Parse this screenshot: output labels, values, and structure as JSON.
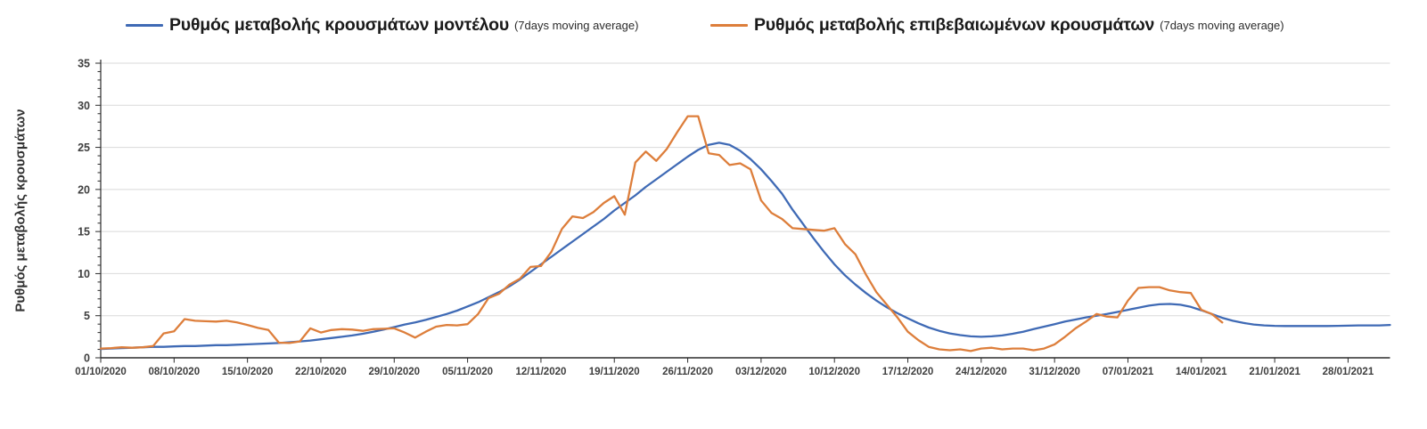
{
  "legend": [
    {
      "label": "Ρυθμός μεταβολής κρουσμάτων μοντέλου",
      "suffix": "(7days moving average)",
      "color": "#3f6ab5"
    },
    {
      "label": "Ρυθμός μεταβολής επιβεβαιωμένων κρουσμάτων",
      "suffix": "(7days moving average)",
      "color": "#dd7e3b"
    }
  ],
  "chart_data": {
    "type": "line",
    "title": "",
    "xlabel": "",
    "ylabel": "Ρυθμός μεταβολής κρουσμάτων",
    "ylim": [
      0,
      35
    ],
    "yticks": [
      0,
      5,
      10,
      15,
      20,
      25,
      30,
      35
    ],
    "grid": true,
    "legend_position": "top",
    "x_frequency": "daily",
    "x_start_date": "01/10/2020",
    "x_tick_labels": [
      "01/10/2020",
      "08/10/2020",
      "15/10/2020",
      "22/10/2020",
      "29/10/2020",
      "05/11/2020",
      "12/11/2020",
      "19/11/2020",
      "26/11/2020",
      "03/12/2020",
      "10/12/2020",
      "17/12/2020",
      "24/12/2020",
      "31/12/2020",
      "07/01/2021",
      "14/01/2021",
      "21/01/2021",
      "28/01/2021"
    ],
    "series": [
      {
        "name": "Ρυθμός μεταβολής κρουσμάτων μοντέλου (7days moving average)",
        "color": "#3f6ab5",
        "values": [
          1.05,
          1.1,
          1.15,
          1.2,
          1.25,
          1.3,
          1.3,
          1.35,
          1.4,
          1.4,
          1.45,
          1.5,
          1.5,
          1.55,
          1.6,
          1.65,
          1.7,
          1.75,
          1.85,
          1.95,
          2.05,
          2.2,
          2.35,
          2.5,
          2.65,
          2.85,
          3.1,
          3.35,
          3.65,
          3.95,
          4.2,
          4.5,
          4.85,
          5.2,
          5.6,
          6.1,
          6.6,
          7.2,
          7.8,
          8.5,
          9.3,
          10.2,
          11.1,
          12.0,
          12.9,
          13.8,
          14.7,
          15.6,
          16.5,
          17.5,
          18.4,
          19.3,
          20.3,
          21.2,
          22.1,
          23.0,
          23.9,
          24.7,
          25.3,
          25.55,
          25.3,
          24.6,
          23.6,
          22.4,
          21.0,
          19.5,
          17.6,
          15.9,
          14.2,
          12.6,
          11.1,
          9.8,
          8.7,
          7.7,
          6.8,
          6.0,
          5.3,
          4.7,
          4.1,
          3.6,
          3.2,
          2.9,
          2.7,
          2.55,
          2.5,
          2.55,
          2.65,
          2.85,
          3.1,
          3.4,
          3.7,
          4.0,
          4.3,
          4.55,
          4.8,
          5.0,
          5.2,
          5.45,
          5.7,
          5.95,
          6.2,
          6.35,
          6.4,
          6.3,
          6.05,
          5.65,
          5.2,
          4.75,
          4.4,
          4.15,
          3.95,
          3.85,
          3.8,
          3.78,
          3.78,
          3.78,
          3.78,
          3.78,
          3.8,
          3.82,
          3.85,
          3.85,
          3.85,
          3.9
        ]
      },
      {
        "name": "Ρυθμός μεταβολής επιβεβαιωμένων κρουσμάτων (7days moving average)",
        "color": "#dd7e3b",
        "values": [
          1.1,
          1.15,
          1.25,
          1.2,
          1.25,
          1.4,
          2.9,
          3.15,
          4.6,
          4.4,
          4.35,
          4.3,
          4.4,
          4.2,
          3.9,
          3.55,
          3.3,
          1.8,
          1.75,
          1.95,
          3.5,
          3.0,
          3.3,
          3.4,
          3.35,
          3.2,
          3.4,
          3.45,
          3.5,
          3.0,
          2.4,
          3.1,
          3.7,
          3.9,
          3.85,
          4.0,
          5.2,
          7.1,
          7.6,
          8.7,
          9.4,
          10.8,
          10.9,
          12.6,
          15.3,
          16.8,
          16.6,
          17.3,
          18.4,
          19.2,
          17.0,
          23.2,
          24.5,
          23.4,
          24.8,
          26.8,
          28.7,
          28.7,
          24.3,
          24.1,
          22.9,
          23.1,
          22.4,
          18.7,
          17.2,
          16.5,
          15.4,
          15.3,
          15.2,
          15.1,
          15.4,
          13.5,
          12.3,
          9.9,
          7.8,
          6.3,
          4.8,
          3.1,
          2.1,
          1.3,
          1.0,
          0.9,
          1.0,
          0.8,
          1.1,
          1.2,
          1.0,
          1.1,
          1.1,
          0.9,
          1.1,
          1.6,
          2.5,
          3.5,
          4.3,
          5.2,
          4.9,
          4.8,
          6.8,
          8.3,
          8.4,
          8.4,
          8.0,
          7.8,
          7.7,
          5.7,
          5.2,
          4.2
        ]
      }
    ]
  }
}
